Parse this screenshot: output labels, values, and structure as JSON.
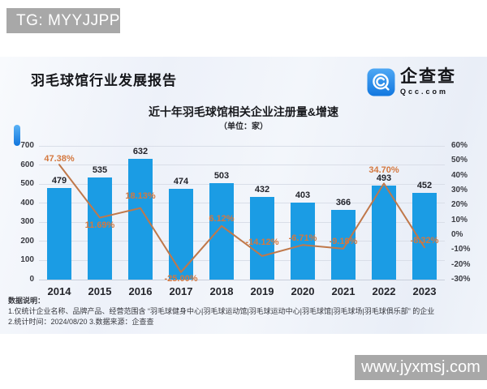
{
  "watermarks": {
    "top": "TG: MYYJJPP",
    "bottom": "www.jyxmsj.com"
  },
  "header": {
    "report_title": "羽毛球馆行业发展报告",
    "logo_name": "企查查",
    "logo_domain": "Qcc.com"
  },
  "colors": {
    "bar": "#1b9ce4",
    "line": "#c0784a",
    "pct_label": "#d4783f",
    "logo_blue_light": "#4fa8f4",
    "logo_blue_dark": "#1278e0"
  },
  "chart_data": {
    "type": "combo-bar-line",
    "title": "近十年羽毛球馆相关企业注册量&增速",
    "subtitle": "（单位：家）",
    "categories": [
      "2014",
      "2015",
      "2016",
      "2017",
      "2018",
      "2019",
      "2020",
      "2021",
      "2022",
      "2023"
    ],
    "series": [
      {
        "name": "注册量",
        "type": "bar",
        "values": [
          479,
          535,
          632,
          474,
          503,
          432,
          403,
          366,
          493,
          452
        ]
      },
      {
        "name": "增速",
        "type": "line",
        "values": [
          47.38,
          11.69,
          18.13,
          -25.0,
          6.12,
          -14.12,
          -6.71,
          -9.18,
          34.7,
          -8.32
        ]
      }
    ],
    "line_labels": [
      "47.38%",
      "11.69%",
      "18.13%",
      "-25.00%",
      "6.12%",
      "-14.12%",
      "-6.71%",
      "-9.18%",
      "34.70%",
      "-8.32%"
    ],
    "left_axis": {
      "min": 0,
      "max": 700,
      "ticks": [
        700,
        600,
        500,
        400,
        300,
        200,
        100,
        0
      ]
    },
    "right_axis": {
      "min": -30,
      "max": 60,
      "ticks": [
        "60%",
        "50%",
        "40%",
        "30%",
        "20%",
        "10%",
        "0%",
        "-10%",
        "-20%",
        "-30%"
      ],
      "tick_values": [
        60,
        50,
        40,
        30,
        20,
        10,
        0,
        -10,
        -20,
        -30
      ]
    },
    "grid": true,
    "legend": "none"
  },
  "notes": {
    "heading": "数据说明：",
    "line1": "1.仅统计企业名称、品牌产品、经营范围含 “羽毛球健身中心|羽毛球运动馆|羽毛球运动中心|羽毛球馆|羽毛球场|羽毛球俱乐部” 的企业",
    "line2": "2.统计时间：2024/08/20    3.数据来源：企查查"
  }
}
